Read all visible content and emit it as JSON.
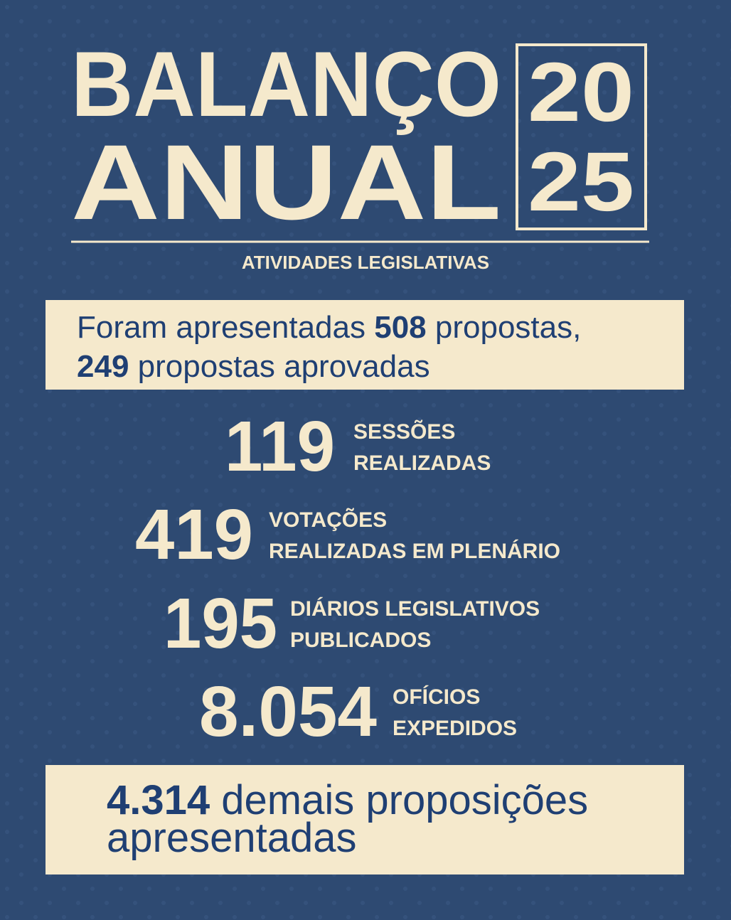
{
  "header": {
    "title_lines": [
      "BALANÇO",
      "ANUAL"
    ],
    "year_lines": [
      "20",
      "25"
    ],
    "subtitle": "ATIVIDADES LEGISLATIVAS"
  },
  "highlight_top": {
    "lead": "Foram apresentadas",
    "total": "508",
    "total_text": "propostas,",
    "approved": "249",
    "approved_text": "propostas aprovadas"
  },
  "stats": [
    {
      "number": "119",
      "label_lines": [
        "SESSÕES",
        "REALIZADAS"
      ]
    },
    {
      "number": "419",
      "label_lines": [
        "VOTAÇÕES",
        "REALIZADAS EM PLENÁRIO"
      ]
    },
    {
      "number": "195",
      "label_lines": [
        "DIÁRIOS LEGISLATIVOS",
        "PUBLICADOS"
      ]
    },
    {
      "number": "8.054",
      "label_lines": [
        "OFÍCIOS",
        "EXPEDIDOS"
      ]
    }
  ],
  "highlight_bottom": {
    "number": "4.314",
    "text_lines": [
      "demais proposições",
      "apresentadas"
    ]
  }
}
